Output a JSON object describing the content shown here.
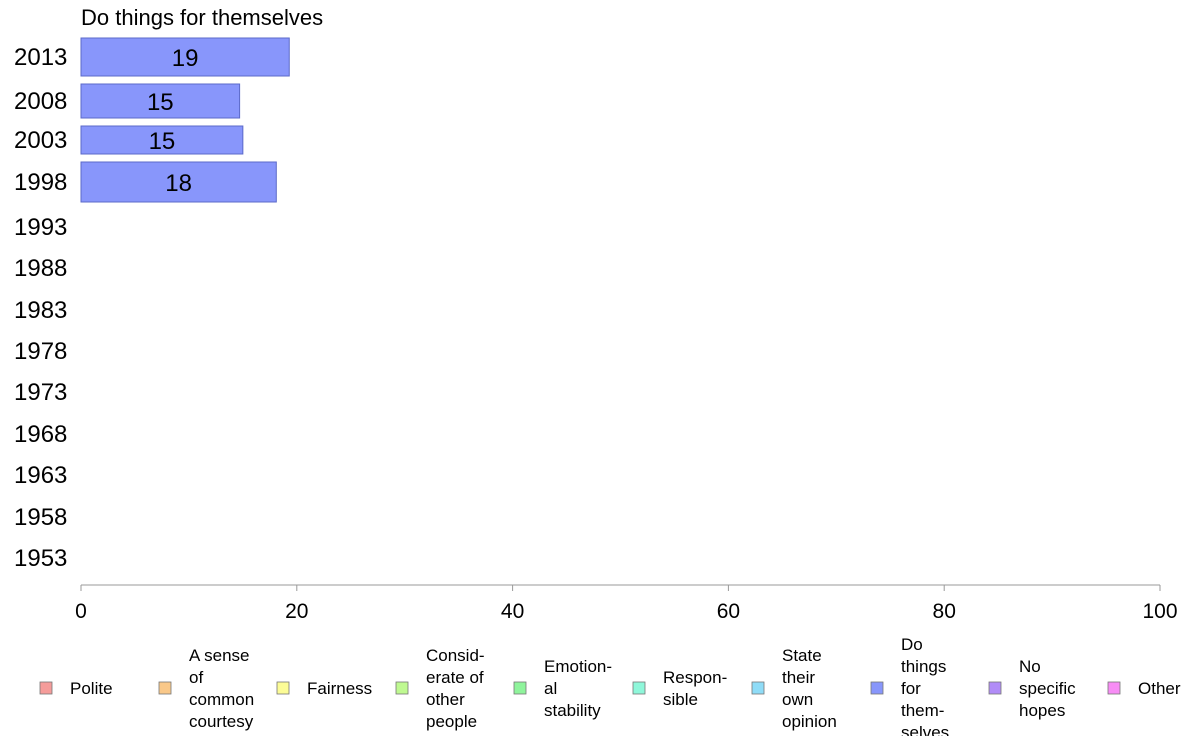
{
  "chart_data": {
    "type": "bar",
    "orientation": "horizontal",
    "title": "Do things for themselves",
    "xlabel": "",
    "ylabel": "",
    "xlim": [
      0,
      100
    ],
    "x_ticks": [
      "0",
      "20",
      "40",
      "60",
      "80",
      "100"
    ],
    "grid": false,
    "categories": [
      "2013",
      "2008",
      "2003",
      "1998",
      "1993",
      "1988",
      "1983",
      "1978",
      "1973",
      "1968",
      "1963",
      "1958",
      "1953"
    ],
    "series": [
      {
        "name": "Do things for themselves",
        "color": "#8896fb",
        "values": [
          19.3,
          14.7,
          15.0,
          18.1,
          null,
          null,
          null,
          null,
          null,
          null,
          null,
          null,
          null
        ],
        "labels": [
          "19",
          "15",
          "15",
          "18",
          "",
          "",
          "",
          "",
          "",
          "",
          "",
          "",
          ""
        ]
      }
    ],
    "legend": {
      "position": "bottom",
      "items": [
        {
          "lines": [
            "Polite"
          ],
          "color": "#f59c9a"
        },
        {
          "lines": [
            "A sense",
            "of",
            "common",
            "courtesy"
          ],
          "color": "#f9c889"
        },
        {
          "lines": [
            "Fairness"
          ],
          "color": "#fcfc96"
        },
        {
          "lines": [
            "Consid-",
            "erate of",
            "other",
            "people"
          ],
          "color": "#bff991"
        },
        {
          "lines": [
            "Emotion-",
            "al",
            "stability"
          ],
          "color": "#8ff49c"
        },
        {
          "lines": [
            "Respon-",
            "sible"
          ],
          "color": "#8ff7da"
        },
        {
          "lines": [
            "State",
            "their",
            "own",
            "opinion"
          ],
          "color": "#8fdcf7"
        },
        {
          "lines": [
            "Do",
            "things",
            "for",
            "them-",
            "selves"
          ],
          "color": "#8896fb"
        },
        {
          "lines": [
            "No",
            "specific",
            "hopes"
          ],
          "color": "#b18cf7"
        },
        {
          "lines": [
            "Other"
          ],
          "color": "#f78cf5"
        }
      ]
    }
  }
}
